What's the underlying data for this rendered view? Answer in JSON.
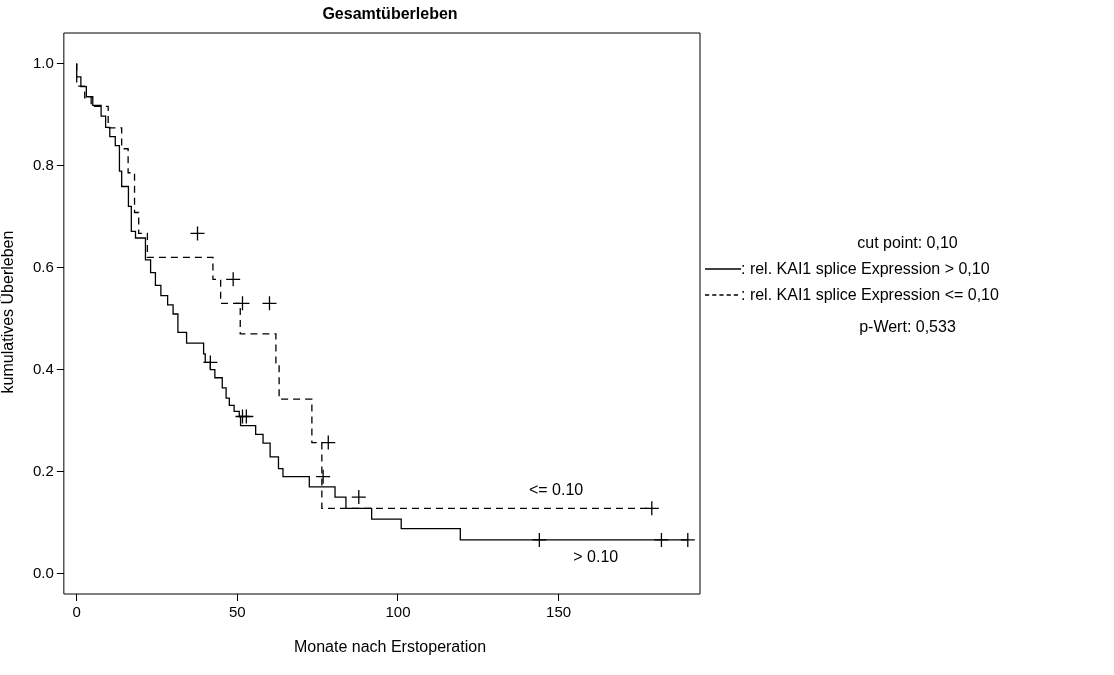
{
  "chart_data": {
    "type": "step",
    "title": "Gesamtüberleben",
    "xlabel": "Monate nach Erstoperation",
    "ylabel": "kumulatives Überleben",
    "legend_title": "cut point: 0,10",
    "xlim": [
      -4,
      194
    ],
    "xticks": [
      0,
      50,
      100,
      150
    ],
    "ylim": [
      -0.04,
      1.06
    ],
    "yticks": [
      {
        "value": 0,
        "label": "0.0"
      },
      0.2,
      0.4,
      0.6,
      0.8,
      {
        "value": 1,
        "label": "1.0"
      }
    ],
    "grid": false,
    "legend": "right",
    "annotations": [
      "<= 0.10",
      "> 0.10",
      "p-Wert: 0,533"
    ],
    "series": [
      {
        "name": ": rel. KAI1 splice Expression > 0,10",
        "color": "#000000",
        "line_style": "solid",
        "x": [
          0,
          1.3,
          3,
          5,
          7.6,
          9,
          10.3,
          12,
          13.3,
          14,
          16.1,
          17,
          18.3,
          21.4,
          23,
          24.5,
          26.2,
          28.3,
          30,
          31.5,
          34.2,
          39.5,
          40,
          41.6,
          43,
          45.3,
          46.5,
          47.5,
          49,
          50.6,
          51,
          55.7,
          58,
          60.2,
          62.8,
          64.2,
          72.4,
          80.4,
          83.8,
          91.8,
          101,
          119.4,
          132.9,
          190.2
        ],
        "values": [
          1.0,
          0.974,
          0.955,
          0.935,
          0.918,
          0.897,
          0.875,
          0.857,
          0.839,
          0.789,
          0.759,
          0.72,
          0.671,
          0.658,
          0.615,
          0.59,
          0.565,
          0.545,
          0.527,
          0.509,
          0.473,
          0.452,
          0.431,
          0.414,
          0.4,
          0.384,
          0.364,
          0.344,
          0.33,
          0.318,
          0.308,
          0.29,
          0.273,
          0.256,
          0.229,
          0.206,
          0.19,
          0.17,
          0.15,
          0.128,
          0.107,
          0.088,
          0.066,
          0.066
        ]
      },
      {
        "name": ": rel. KAI1 splice Expression <= 0,10",
        "color": "#000000",
        "line_style": "dashed",
        "x": [
          0,
          2.5,
          4.5,
          9.8,
          14,
          16,
          18,
          19.3,
          22,
          42.4,
          44.8,
          50.9,
          62,
          63,
          73.2,
          76.3,
          119.4,
          179
        ],
        "values": [
          1.0,
          0.956,
          0.933,
          0.916,
          0.874,
          0.833,
          0.786,
          0.708,
          0.667,
          0.62,
          0.577,
          0.53,
          0.47,
          0.413,
          0.342,
          0.257,
          0.128,
          0.128
        ]
      },
      {
        "type": "scatter",
        "color": "#000000",
        "marker": "cross",
        "x": [
          41.6,
          51.6,
          52.8,
          76.7,
          87.8,
          144,
          182,
          190.2
        ],
        "values": [
          0.414,
          0.308,
          0.308,
          0.19,
          0.15,
          0.066,
          0.066,
          0.066
        ]
      },
      {
        "type": "scatter",
        "color": "#000000",
        "marker": "cross",
        "x": [
          37.6,
          48.7,
          51.6,
          60,
          78.3,
          179
        ],
        "values": [
          0.667,
          0.577,
          0.53,
          0.53,
          0.257,
          0.128
        ]
      }
    ]
  }
}
